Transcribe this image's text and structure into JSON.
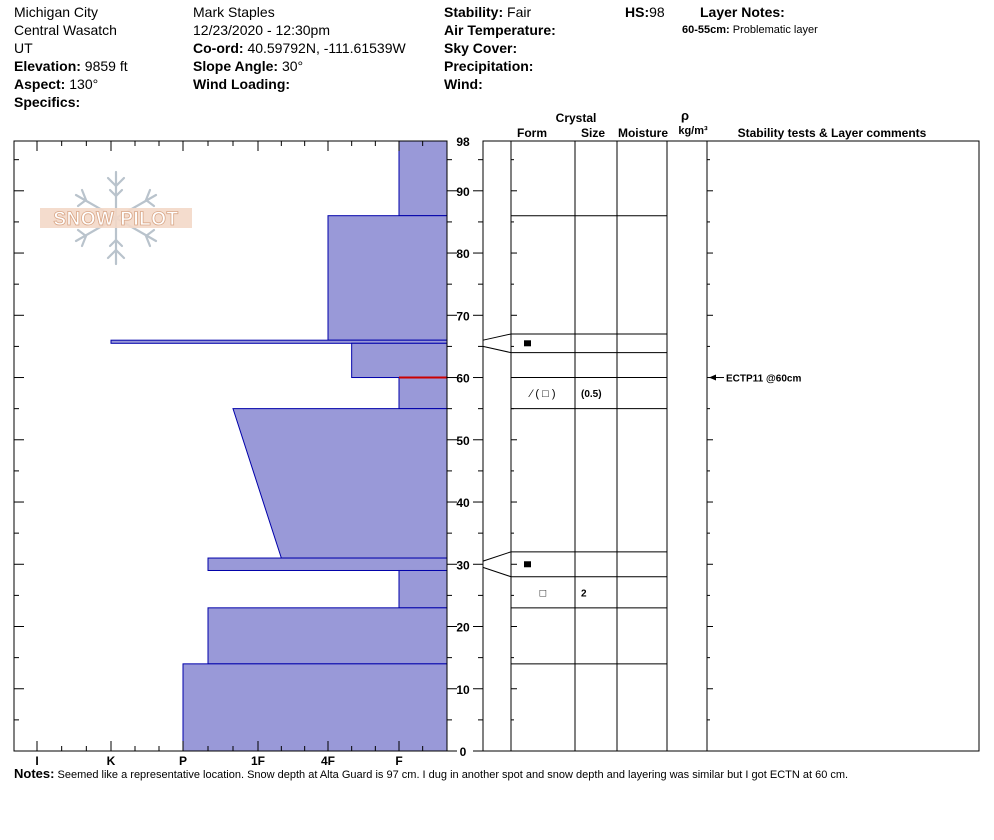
{
  "header": {
    "location": "Michigan City",
    "region": "Central Wasatch",
    "state": "UT",
    "elevation_label": "Elevation:",
    "elevation_value": "9859 ft",
    "aspect_label": "Aspect:",
    "aspect_value": "130°",
    "specifics_label": "Specifics:",
    "observer": "Mark Staples",
    "datetime": "12/23/2020 - 12:30pm",
    "coord_label": "Co-ord:",
    "coord_value": "40.59792N, -111.61539W",
    "slope_label": "Slope Angle:",
    "slope_value": "30°",
    "wind_loading_label": "Wind Loading:",
    "stability_label": "Stability:",
    "stability_value": "Fair",
    "air_temp_label": "Air Temperature:",
    "sky_cover_label": "Sky Cover:",
    "precip_label": "Precipitation:",
    "wind_label": "Wind:",
    "hs_label": "HS:",
    "hs_value": "98",
    "layer_notes_label": "Layer Notes:",
    "layer_note_range": "60-55cm:",
    "layer_note_text": "Problematic layer"
  },
  "columns": {
    "crystal": "Crystal",
    "form": "Form",
    "size": "Size",
    "moisture": "Moisture",
    "rho": "ρ",
    "density_unit": "kg/m³",
    "comments": "Stability tests & Layer comments"
  },
  "logo_text": "SNOW PILOT",
  "notes": {
    "label": "Notes:",
    "text": "Seemed like a representative location. Snow depth at Alta Guard is 97 cm. I dug in another spot and snow depth and layering was similar but I got ECTN at 60 cm."
  },
  "colors": {
    "hardness_fill": "#9999d8",
    "hardness_stroke": "#0000aa",
    "weak_layer": "#cc0000"
  },
  "chart_data": {
    "type": "area",
    "xlabel": "",
    "ylabel": "",
    "x_tick_labels": [
      "I",
      "K",
      "P",
      "1F",
      "4F",
      "F"
    ],
    "y_ticks": [
      0,
      10,
      20,
      30,
      40,
      50,
      60,
      70,
      80,
      90,
      98
    ],
    "ylim": [
      0,
      98
    ],
    "hardness_scale": [
      "F",
      "4F",
      "1F",
      "P",
      "K",
      "I"
    ],
    "hardness_layers": [
      {
        "bottom": 86,
        "top": 98,
        "hardness": "F"
      },
      {
        "bottom": 66,
        "top": 86,
        "hardness": "4F"
      },
      {
        "bottom": 65.5,
        "top": 66,
        "hardness": "K"
      },
      {
        "bottom": 60,
        "top": 65.5,
        "hardness": "4F-"
      },
      {
        "bottom": 55,
        "top": 60,
        "hardness": "F"
      },
      {
        "bottom": 31,
        "top": 55,
        "hardness_bottom": "1F-",
        "hardness_top": "1F+"
      },
      {
        "bottom": 29,
        "top": 31,
        "hardness": "P-"
      },
      {
        "bottom": 23,
        "top": 29,
        "hardness": "F"
      },
      {
        "bottom": 14,
        "top": 23,
        "hardness": "P-"
      },
      {
        "bottom": 0,
        "top": 14,
        "hardness": "P"
      }
    ],
    "layer_boundaries": [
      98,
      86,
      67,
      64,
      60,
      55,
      32,
      28,
      23,
      14
    ],
    "layer_details": [
      {
        "depth": 65.5,
        "form_icon": "filled-square",
        "size": ""
      },
      {
        "depth": 57.5,
        "form": "⁄ ( □ )",
        "size": "(0.5)"
      },
      {
        "depth": 30,
        "form_icon": "filled-square",
        "size": ""
      },
      {
        "depth": 25.5,
        "form": "□",
        "size": "2"
      }
    ],
    "weak_layer_depth": 60,
    "stability_tests": [
      {
        "depth": 60,
        "label": "ECTP11 @60cm"
      }
    ]
  }
}
